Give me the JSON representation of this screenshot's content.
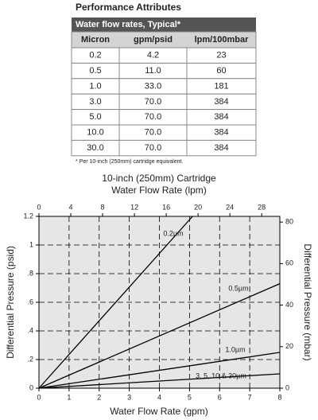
{
  "header": {
    "title": "Performance Attributes"
  },
  "table": {
    "caption": "Water flow rates, Typical*",
    "columns": [
      "Micron",
      "gpm/psid",
      "lpm/100mbar"
    ],
    "rows": [
      [
        "0.2",
        "4.2",
        "23"
      ],
      [
        "0.5",
        "11.0",
        "60"
      ],
      [
        "1.0",
        "33.0",
        "181"
      ],
      [
        "3.0",
        "70.0",
        "384"
      ],
      [
        "5.0",
        "70.0",
        "384"
      ],
      [
        "10.0",
        "70.0",
        "384"
      ],
      [
        "30.0",
        "70.0",
        "384"
      ]
    ]
  },
  "footnote": "* Per 10-inch (250mm) cartridge equivalent.",
  "chart_data": {
    "type": "line",
    "title": "10-inch (250mm) Cartridge",
    "x2_label": "Water Flow Rate (lpm)",
    "x_label": "Water Flow Rate (gpm)",
    "y_label": "Differential Pressure (psid)",
    "y2_label": "Differential Pressure (mbar)",
    "xlim": [
      0,
      8
    ],
    "xticks": [
      0,
      1,
      2,
      3,
      4,
      5,
      6,
      7,
      8
    ],
    "x2lim": [
      0,
      30.28
    ],
    "x2ticks": [
      0,
      4,
      8,
      12,
      16,
      20,
      24,
      28
    ],
    "ylim": [
      0,
      1.2
    ],
    "yticks": [
      0,
      {
        "value": 0.2,
        "label": ".2"
      },
      {
        "value": 0.4,
        "label": ".4"
      },
      {
        "value": 0.6,
        "label": ".6"
      },
      {
        "value": 0.8,
        "label": ".8"
      },
      1,
      1.2
    ],
    "y2lim": [
      0,
      82.74
    ],
    "y2ticks": [
      0,
      20,
      40,
      60,
      80
    ],
    "grid": true,
    "series": [
      {
        "name": "0.2µm",
        "color": "#000000",
        "x": [
          0,
          5.1
        ],
        "values": [
          0,
          1.2
        ]
      },
      {
        "name": "0.5µm",
        "color": "#000000",
        "x": [
          0,
          8
        ],
        "values": [
          0,
          0.73
        ]
      },
      {
        "name": "1.0µm",
        "color": "#000000",
        "x": [
          0,
          8
        ],
        "values": [
          0,
          0.25
        ]
      },
      {
        "name": "3, 5, 10 & 30µm",
        "color": "#000000",
        "x": [
          0,
          8
        ],
        "values": [
          0,
          0.1
        ]
      }
    ]
  }
}
